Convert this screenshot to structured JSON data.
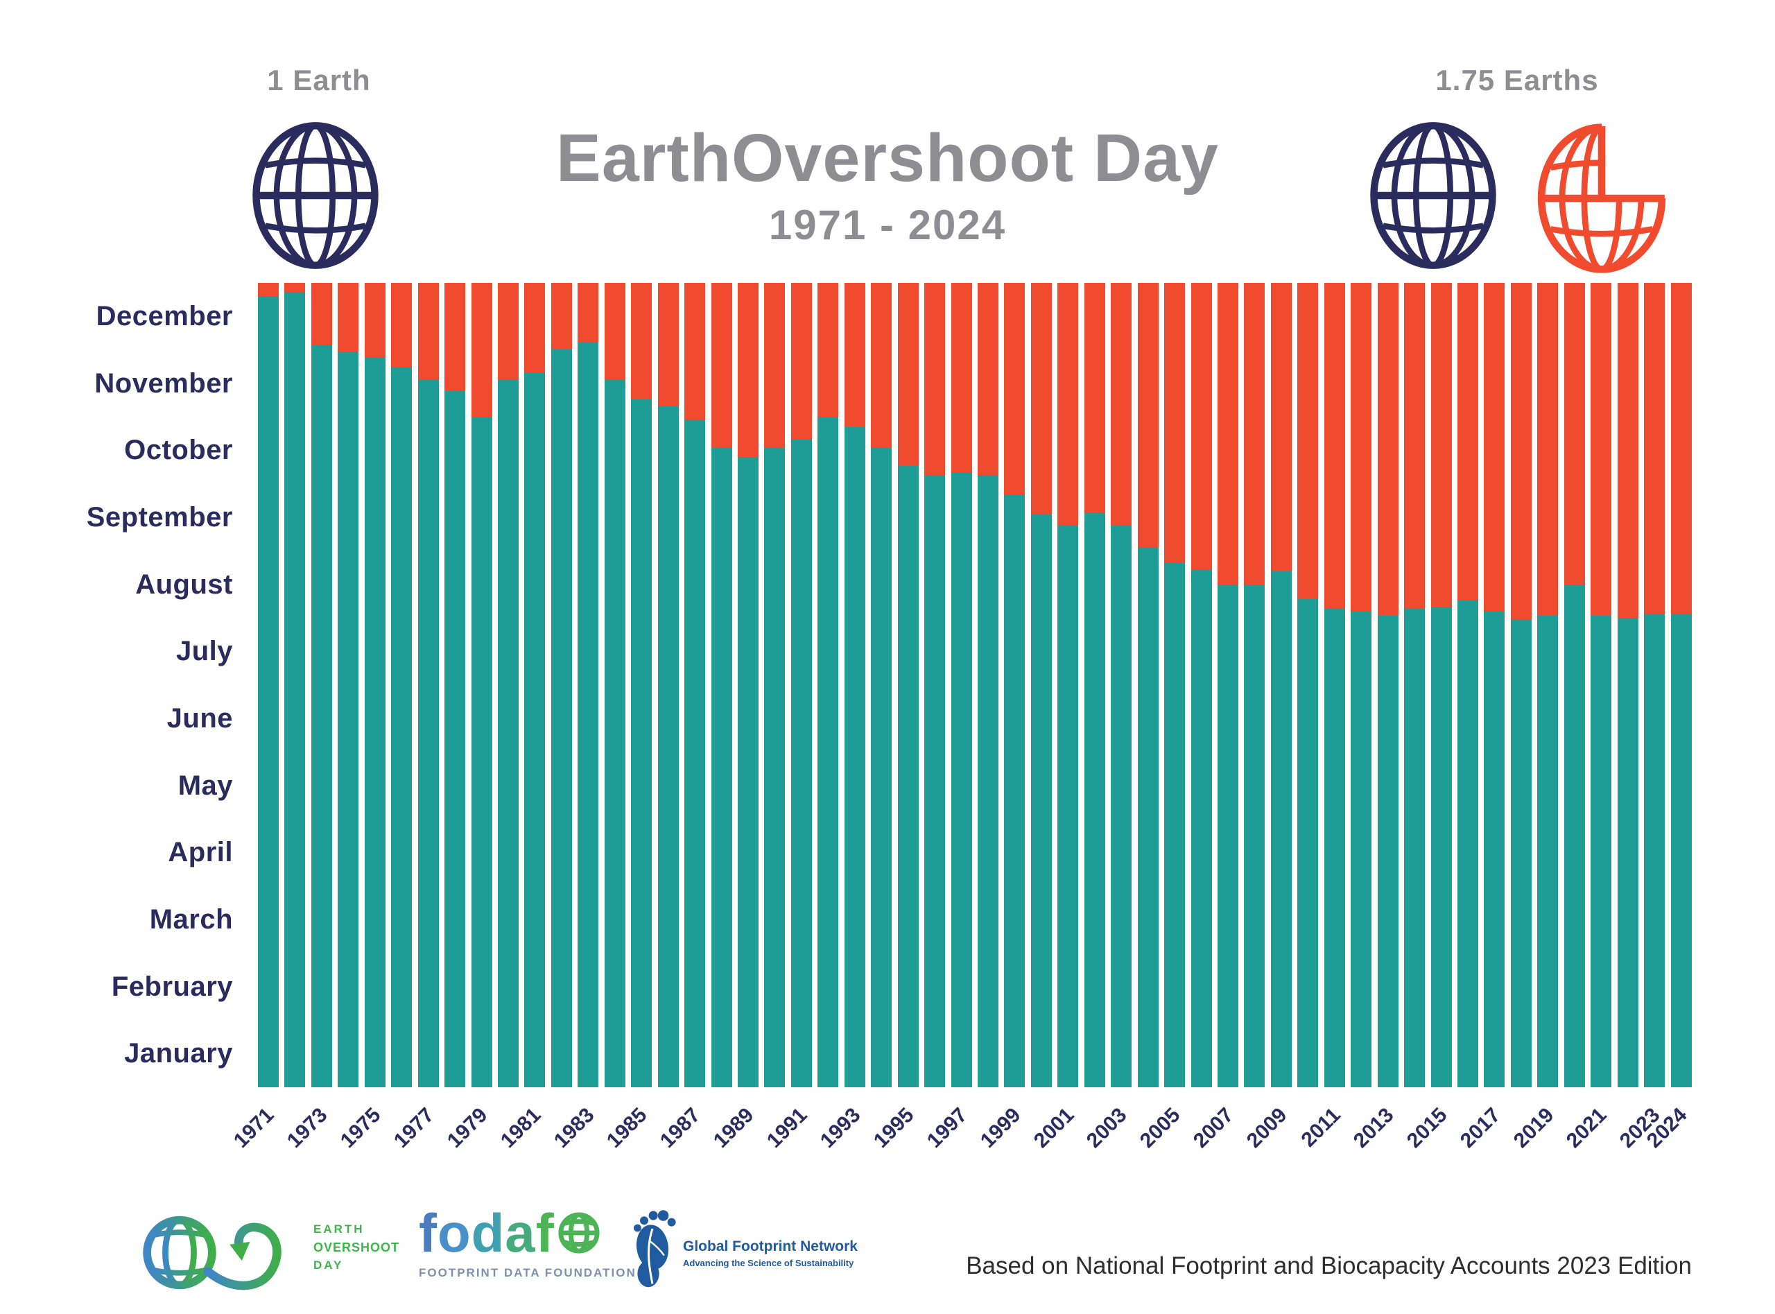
{
  "header": {
    "badge_left": "1 Earth",
    "badge_right": "1.75 Earths",
    "title": "EarthOvershoot Day",
    "subtitle": "1971 - 2024"
  },
  "chart_data": {
    "type": "bar",
    "stacked": true,
    "title": "EarthOvershoot Day",
    "subtitle": "1971 - 2024",
    "ylim_days": [
      0,
      365
    ],
    "grid": false,
    "legend": "none (globes '1 Earth' vs '1.75 Earths' act as visual legend)",
    "colors": {
      "bar_within_budget_teal": "#1E9D96",
      "bar_overshoot_orange": "#F04B2E",
      "axis_label_navy": "#2B2C5E",
      "title_gray": "#8D8D92"
    },
    "y_axis": {
      "months_top_to_bottom": [
        "December",
        "November",
        "October",
        "September",
        "August",
        "July",
        "June",
        "May",
        "April",
        "March",
        "February",
        "January"
      ]
    },
    "x_axis": {
      "tick_labels": [
        "1971",
        "1973",
        "1975",
        "1977",
        "1979",
        "1981",
        "1983",
        "1985",
        "1987",
        "1989",
        "1991",
        "1993",
        "1995",
        "1997",
        "1999",
        "2001",
        "2003",
        "2005",
        "2007",
        "2009",
        "2011",
        "2013",
        "2015",
        "2017",
        "2019",
        "2021",
        "2023",
        "2024"
      ]
    },
    "years": [
      {
        "year": 1971,
        "overshoot_date": "Dec 25",
        "day_of_year": 359
      },
      {
        "year": 1972,
        "overshoot_date": "Dec 27",
        "day_of_year": 361
      },
      {
        "year": 1973,
        "overshoot_date": "Dec 3",
        "day_of_year": 337
      },
      {
        "year": 1974,
        "overshoot_date": "Nov 30",
        "day_of_year": 334
      },
      {
        "year": 1975,
        "overshoot_date": "Nov 27",
        "day_of_year": 331
      },
      {
        "year": 1976,
        "overshoot_date": "Nov 23",
        "day_of_year": 327
      },
      {
        "year": 1977,
        "overshoot_date": "Nov 17",
        "day_of_year": 321
      },
      {
        "year": 1978,
        "overshoot_date": "Nov 12",
        "day_of_year": 316
      },
      {
        "year": 1979,
        "overshoot_date": "Oct 31",
        "day_of_year": 304
      },
      {
        "year": 1980,
        "overshoot_date": "Nov 17",
        "day_of_year": 321
      },
      {
        "year": 1981,
        "overshoot_date": "Nov 20",
        "day_of_year": 324
      },
      {
        "year": 1982,
        "overshoot_date": "Dec 1",
        "day_of_year": 335
      },
      {
        "year": 1983,
        "overshoot_date": "Dec 4",
        "day_of_year": 338
      },
      {
        "year": 1984,
        "overshoot_date": "Nov 17",
        "day_of_year": 321
      },
      {
        "year": 1985,
        "overshoot_date": "Nov 8",
        "day_of_year": 312
      },
      {
        "year": 1986,
        "overshoot_date": "Nov 5",
        "day_of_year": 309
      },
      {
        "year": 1987,
        "overshoot_date": "Oct 30",
        "day_of_year": 303
      },
      {
        "year": 1988,
        "overshoot_date": "Oct 17",
        "day_of_year": 290
      },
      {
        "year": 1989,
        "overshoot_date": "Oct 13",
        "day_of_year": 286
      },
      {
        "year": 1990,
        "overshoot_date": "Oct 17",
        "day_of_year": 290
      },
      {
        "year": 1991,
        "overshoot_date": "Oct 21",
        "day_of_year": 294
      },
      {
        "year": 1992,
        "overshoot_date": "Oct 31",
        "day_of_year": 304
      },
      {
        "year": 1993,
        "overshoot_date": "Oct 27",
        "day_of_year": 300
      },
      {
        "year": 1994,
        "overshoot_date": "Oct 17",
        "day_of_year": 290
      },
      {
        "year": 1995,
        "overshoot_date": "Oct 9",
        "day_of_year": 282
      },
      {
        "year": 1996,
        "overshoot_date": "Oct 5",
        "day_of_year": 278
      },
      {
        "year": 1997,
        "overshoot_date": "Oct 6",
        "day_of_year": 279
      },
      {
        "year": 1998,
        "overshoot_date": "Oct 5",
        "day_of_year": 278
      },
      {
        "year": 1999,
        "overshoot_date": "Sep 26",
        "day_of_year": 269
      },
      {
        "year": 2000,
        "overshoot_date": "Sep 17",
        "day_of_year": 260
      },
      {
        "year": 2001,
        "overshoot_date": "Sep 12",
        "day_of_year": 255
      },
      {
        "year": 2002,
        "overshoot_date": "Sep 18",
        "day_of_year": 261
      },
      {
        "year": 2003,
        "overshoot_date": "Sep 12",
        "day_of_year": 255
      },
      {
        "year": 2004,
        "overshoot_date": "Sep 2",
        "day_of_year": 245
      },
      {
        "year": 2005,
        "overshoot_date": "Aug 26",
        "day_of_year": 238
      },
      {
        "year": 2006,
        "overshoot_date": "Aug 23",
        "day_of_year": 235
      },
      {
        "year": 2007,
        "overshoot_date": "Aug 16",
        "day_of_year": 228
      },
      {
        "year": 2008,
        "overshoot_date": "Aug 16",
        "day_of_year": 228
      },
      {
        "year": 2009,
        "overshoot_date": "Aug 22",
        "day_of_year": 234
      },
      {
        "year": 2010,
        "overshoot_date": "Aug 10",
        "day_of_year": 222
      },
      {
        "year": 2011,
        "overshoot_date": "Aug 5",
        "day_of_year": 217
      },
      {
        "year": 2012,
        "overshoot_date": "Aug 4",
        "day_of_year": 216
      },
      {
        "year": 2013,
        "overshoot_date": "Aug 2",
        "day_of_year": 214
      },
      {
        "year": 2014,
        "overshoot_date": "Aug 5",
        "day_of_year": 217
      },
      {
        "year": 2015,
        "overshoot_date": "Aug 6",
        "day_of_year": 218
      },
      {
        "year": 2016,
        "overshoot_date": "Aug 9",
        "day_of_year": 221
      },
      {
        "year": 2017,
        "overshoot_date": "Aug 4",
        "day_of_year": 216
      },
      {
        "year": 2018,
        "overshoot_date": "Jul 31",
        "day_of_year": 212
      },
      {
        "year": 2019,
        "overshoot_date": "Aug 2",
        "day_of_year": 214
      },
      {
        "year": 2020,
        "overshoot_date": "Aug 16",
        "day_of_year": 228
      },
      {
        "year": 2021,
        "overshoot_date": "Aug 2",
        "day_of_year": 214
      },
      {
        "year": 2022,
        "overshoot_date": "Aug 1",
        "day_of_year": 213
      },
      {
        "year": 2023,
        "overshoot_date": "Aug 3",
        "day_of_year": 215
      },
      {
        "year": 2024,
        "overshoot_date": "Aug 3",
        "day_of_year": 215
      }
    ]
  },
  "footer": {
    "eod": {
      "line1": "EARTH",
      "line2": "OVERSHOOT",
      "line3": "DAY"
    },
    "fodafo": {
      "letters": [
        {
          "ch": "f",
          "color": "#4A7CC0"
        },
        {
          "ch": "o",
          "color": "#4A90C8"
        },
        {
          "ch": "d",
          "color": "#3FA0B0"
        },
        {
          "ch": "a",
          "color": "#45AB7C"
        },
        {
          "ch": "f",
          "color": "#4DB456"
        }
      ],
      "subtext": "FOOTPRINT DATA FOUNDATION"
    },
    "gfn": {
      "name": "Global Footprint Network",
      "tagline": "Advancing the Science of Sustainability"
    },
    "note": "Based on National Footprint and Biocapacity Accounts 2023 Edition"
  }
}
